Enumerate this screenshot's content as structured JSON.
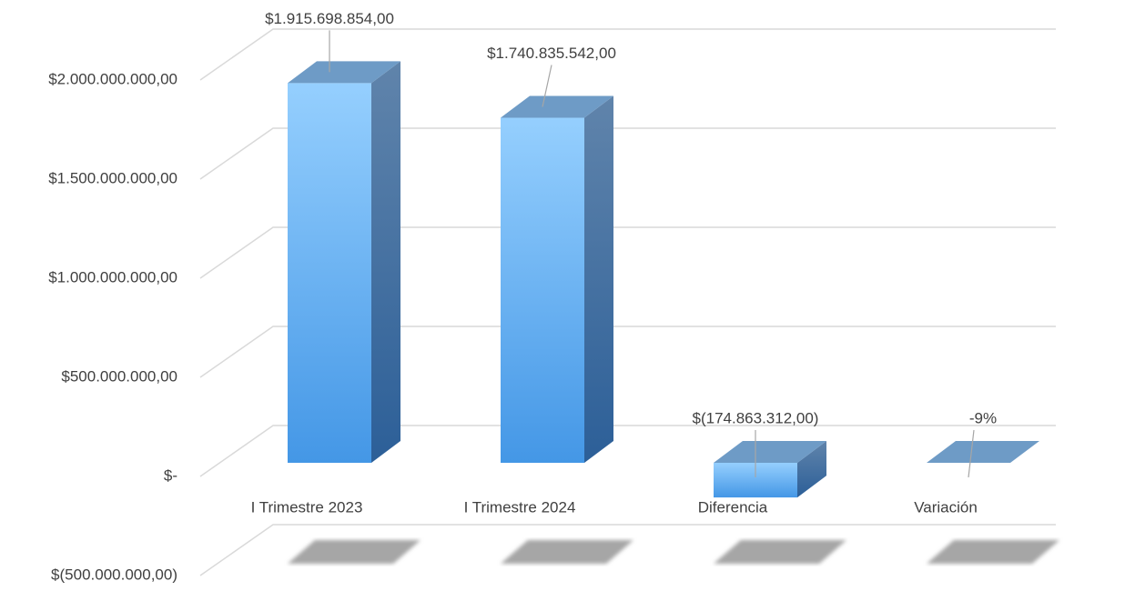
{
  "chart_data": {
    "type": "bar3d",
    "categories": [
      "I Trimestre 2023",
      "I Trimestre 2024",
      "Diferencia",
      "Variación"
    ],
    "values": [
      1915698854,
      1740835542,
      -174863312,
      -0.09
    ],
    "value_labels": [
      "$1.915.698.854,00",
      "$1.740.835.542,00",
      "$(174.863.312,00)",
      "-9%"
    ],
    "ylim": [
      -500000000,
      2000000000
    ],
    "yticks": [
      {
        "value": -500000000,
        "label": "$(500.000.000,00)"
      },
      {
        "value": 0,
        "label": "$-"
      },
      {
        "value": 500000000,
        "label": "$500.000.000,00"
      },
      {
        "value": 1000000000,
        "label": "$1.000.000.000,00"
      },
      {
        "value": 1500000000,
        "label": "$1.500.000.000,00"
      },
      {
        "value": 2000000000,
        "label": "$2.000.000.000,00"
      }
    ],
    "grid": true
  }
}
